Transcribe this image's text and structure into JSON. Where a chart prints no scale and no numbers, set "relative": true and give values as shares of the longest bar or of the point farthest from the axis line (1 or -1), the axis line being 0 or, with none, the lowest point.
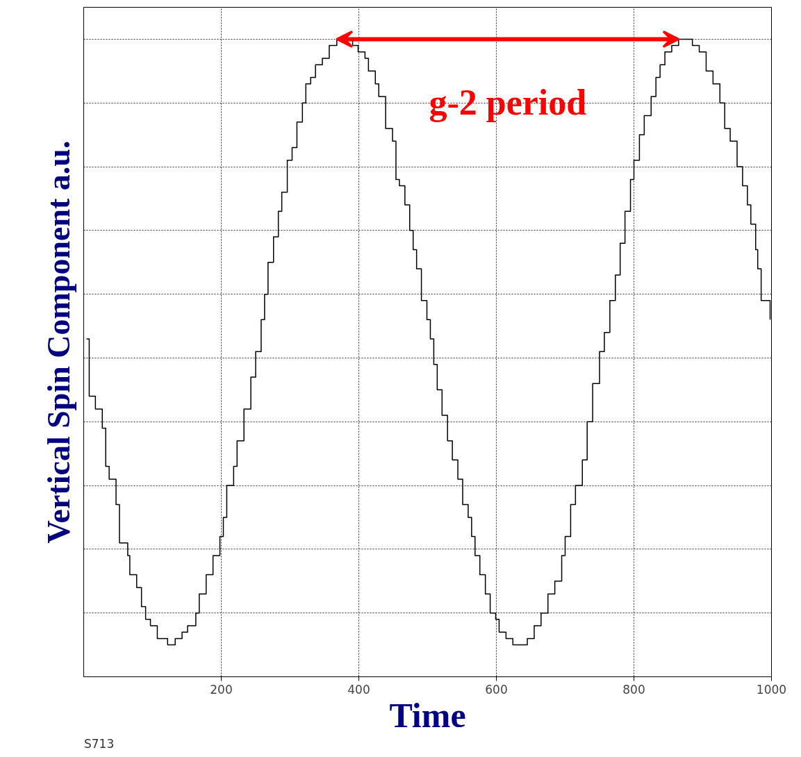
{
  "chart_data": {
    "type": "step",
    "xlabel": "Time",
    "ylabel": "Vertical Spin Component a.u.",
    "relative": true,
    "x": [
      4,
      8,
      17,
      27,
      32,
      37,
      47,
      52,
      64,
      67,
      77,
      84,
      90,
      97,
      107,
      122,
      133,
      143,
      151,
      163,
      168,
      178,
      188,
      198,
      203,
      208,
      218,
      223,
      233,
      243,
      250,
      258,
      263,
      268,
      276,
      283,
      288,
      296,
      303,
      310,
      318,
      323,
      330,
      337,
      347,
      357,
      368,
      379,
      391,
      399,
      409,
      414,
      424,
      429,
      439,
      449,
      454,
      459,
      467,
      474,
      479,
      484,
      491,
      499,
      504,
      509,
      514,
      521,
      529,
      536,
      544,
      551,
      559,
      564,
      569,
      576,
      584,
      591,
      599,
      604,
      614,
      624,
      634,
      645,
      655,
      665,
      675,
      685,
      695,
      700,
      708,
      715,
      725,
      732,
      740,
      750,
      757,
      765,
      773,
      780,
      787,
      795,
      800,
      808,
      815,
      825,
      832,
      838,
      845,
      855,
      865,
      875,
      885,
      895,
      905,
      915,
      925,
      932,
      940,
      950,
      958,
      965,
      970,
      977,
      980,
      985,
      990,
      998
    ],
    "series": [
      {
        "color": "#000000",
        "values": [
          0.53,
          0.44,
          0.42,
          0.39,
          0.33,
          0.31,
          0.27,
          0.21,
          0.19,
          0.16,
          0.14,
          0.11,
          0.09,
          0.08,
          0.06,
          0.05,
          0.06,
          0.07,
          0.08,
          0.1,
          0.13,
          0.16,
          0.19,
          0.22,
          0.25,
          0.3,
          0.33,
          0.37,
          0.42,
          0.47,
          0.51,
          0.56,
          0.6,
          0.65,
          0.69,
          0.73,
          0.76,
          0.81,
          0.83,
          0.87,
          0.9,
          0.93,
          0.94,
          0.96,
          0.97,
          0.99,
          1.0,
          1.0,
          0.99,
          0.98,
          0.97,
          0.95,
          0.93,
          0.91,
          0.86,
          0.84,
          0.78,
          0.77,
          0.74,
          0.7,
          0.67,
          0.64,
          0.59,
          0.56,
          0.53,
          0.49,
          0.45,
          0.41,
          0.37,
          0.34,
          0.31,
          0.27,
          0.25,
          0.22,
          0.19,
          0.16,
          0.13,
          0.1,
          0.09,
          0.07,
          0.06,
          0.05,
          0.05,
          0.06,
          0.08,
          0.1,
          0.13,
          0.15,
          0.19,
          0.22,
          0.27,
          0.3,
          0.34,
          0.4,
          0.46,
          0.51,
          0.54,
          0.59,
          0.63,
          0.68,
          0.73,
          0.78,
          0.81,
          0.85,
          0.88,
          0.91,
          0.94,
          0.96,
          0.98,
          0.99,
          1.0,
          1.0,
          0.99,
          0.98,
          0.95,
          0.93,
          0.9,
          0.86,
          0.84,
          0.8,
          0.77,
          0.74,
          0.71,
          0.67,
          0.64,
          0.59,
          0.59,
          0.56
        ]
      }
    ],
    "xlim": [
      0,
      1000
    ],
    "xticks": [
      200,
      400,
      600,
      800,
      1000
    ],
    "grid": true,
    "line_style": "solid",
    "annotations": [
      "g-2 period",
      "S713"
    ]
  }
}
